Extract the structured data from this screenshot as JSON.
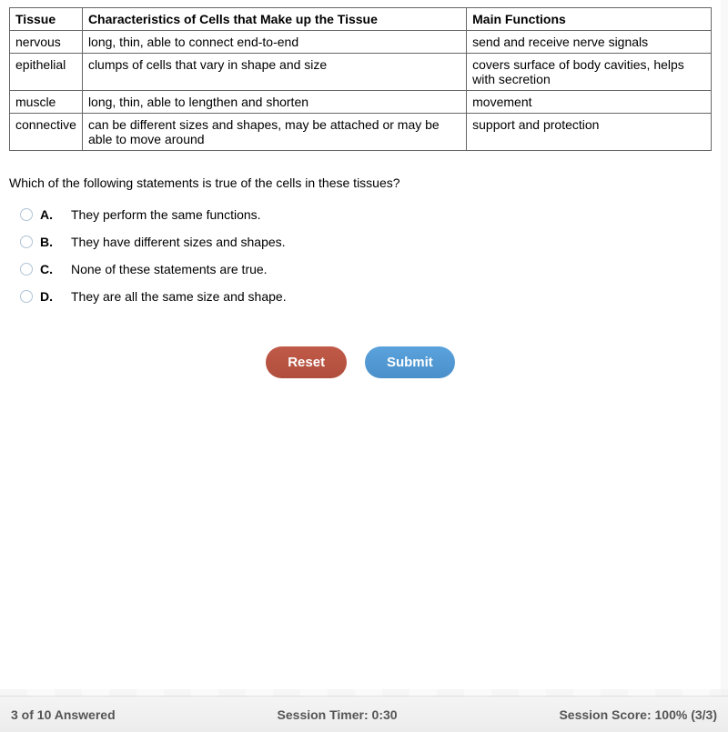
{
  "table": {
    "headers": [
      "Tissue",
      "Characteristics of Cells that Make up the Tissue",
      "Main Functions"
    ],
    "col_widths": [
      "10%",
      "64%",
      "26%"
    ],
    "rows": [
      [
        "nervous",
        "long, thin, able to connect end-to-end",
        "send and receive nerve signals"
      ],
      [
        "epithelial",
        "clumps of cells that vary in shape and size",
        "covers surface of body cavities, helps with secretion"
      ],
      [
        "muscle",
        "long, thin, able to lengthen and shorten",
        "movement"
      ],
      [
        "connective",
        "can be different sizes and shapes, may be attached or may be able to move around",
        "support and protection"
      ]
    ]
  },
  "question": "Which of the following statements is true of the cells in these tissues?",
  "options": [
    {
      "letter": "A.",
      "text": "They perform the same functions."
    },
    {
      "letter": "B.",
      "text": "They have different sizes and shapes."
    },
    {
      "letter": "C.",
      "text": "None of these statements are true."
    },
    {
      "letter": "D.",
      "text": "They are all the same size and shape."
    }
  ],
  "buttons": {
    "reset": "Reset",
    "submit": "Submit"
  },
  "footer": {
    "progress": "3 of 10 Answered",
    "timer": "Session Timer: 0:30",
    "score": "Session Score: 100% (3/3)"
  },
  "colors": {
    "reset_btn": "#b5503f",
    "submit_btn": "#5099d2",
    "border": "#666666",
    "radio_border": "#b0c4d6"
  }
}
